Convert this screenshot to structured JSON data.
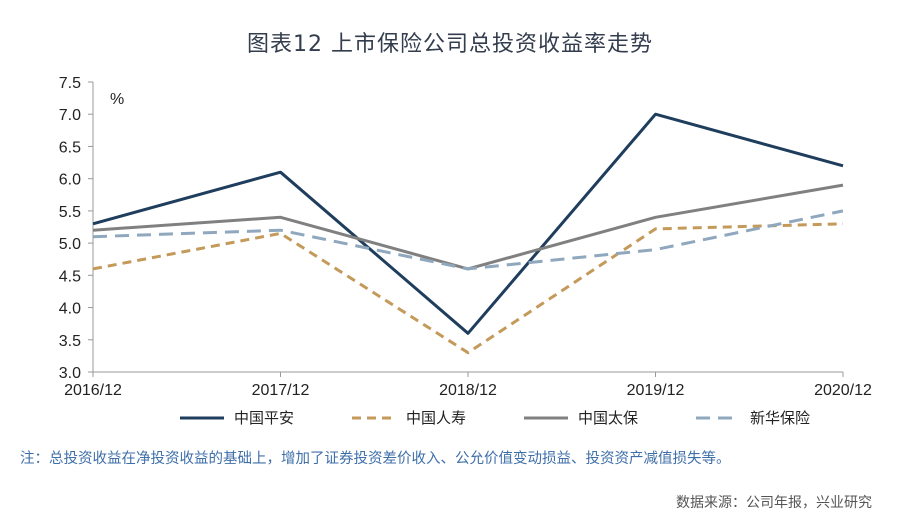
{
  "title": "图表12  上市保险公司总投资收益率走势",
  "chart_data": {
    "type": "line",
    "title": "图表12  上市保险公司总投资收益率走势",
    "unit_label": "%",
    "categories": [
      "2016/12",
      "2017/12",
      "2018/12",
      "2019/12",
      "2020/12"
    ],
    "ylim": [
      3.0,
      7.5
    ],
    "yticks": [
      3.0,
      3.5,
      4.0,
      4.5,
      5.0,
      5.5,
      6.0,
      6.5,
      7.0,
      7.5
    ],
    "ytick_labels": [
      "3.0",
      "3.5",
      "4.0",
      "4.5",
      "5.0",
      "5.5",
      "6.0",
      "6.5",
      "7.0",
      "7.5"
    ],
    "grid": false,
    "legend_position": "bottom",
    "series": [
      {
        "name": "中国平安",
        "values": [
          5.3,
          6.1,
          3.6,
          7.0,
          6.2
        ],
        "color": "#1f3d5c",
        "style": "solid"
      },
      {
        "name": "中国人寿",
        "values": [
          4.6,
          5.15,
          3.3,
          5.22,
          5.3
        ],
        "color": "#c49a5a",
        "style": "dashed"
      },
      {
        "name": "中国太保",
        "values": [
          5.2,
          5.4,
          4.6,
          5.4,
          5.9
        ],
        "color": "#808080",
        "style": "solid"
      },
      {
        "name": "新华保险",
        "values": [
          5.1,
          5.2,
          4.6,
          4.9,
          5.5
        ],
        "color": "#8fa8be",
        "style": "longdash"
      }
    ]
  },
  "note": "注：总投资收益在净投资收益的基础上，增加了证券投资差价收入、公允价值变动损益、投资资产减值损失等。",
  "source": "数据来源：公司年报，兴业研究"
}
